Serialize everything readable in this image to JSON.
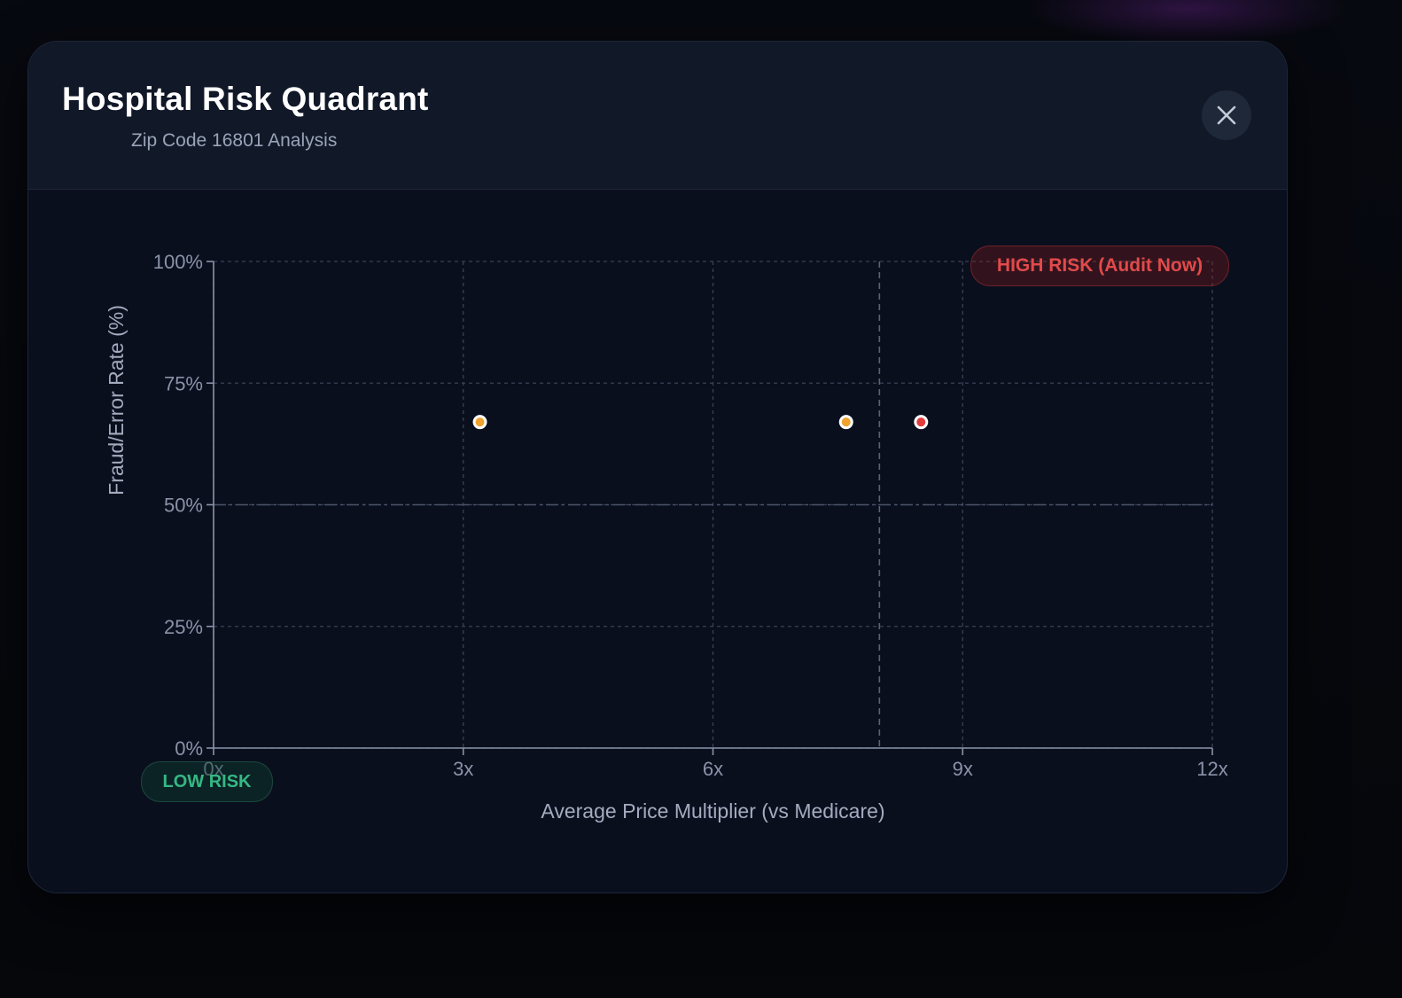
{
  "modal": {
    "title": "Hospital Risk Quadrant",
    "subtitle": "Zip Code 16801 Analysis",
    "close_icon": "close-icon"
  },
  "badges": {
    "high_risk": "HIGH RISK (Audit Now)",
    "low_risk": "LOW RISK"
  },
  "colors": {
    "background": "#0a0f1e",
    "grid": "#3a4254",
    "axis": "#8a93a8",
    "high_risk": "#e24a4a",
    "low_risk": "#35b884",
    "point_orange": "#f0a22e",
    "point_red": "#e23b3b"
  },
  "chart_data": {
    "type": "scatter",
    "title": "",
    "xlabel": "Average Price Multiplier (vs Medicare)",
    "ylabel": "Fraud/Error Rate (%)",
    "xlim": [
      0,
      12
    ],
    "ylim": [
      0,
      100
    ],
    "x_ticks": [
      0,
      3,
      6,
      9,
      12
    ],
    "x_tick_labels": [
      "0x",
      "3x",
      "6x",
      "9x",
      "12x"
    ],
    "y_ticks": [
      0,
      25,
      50,
      75,
      100
    ],
    "y_tick_labels": [
      "0%",
      "25%",
      "50%",
      "75%",
      "100%"
    ],
    "grid": true,
    "reference_lines": [
      {
        "axis": "y",
        "value": 50
      },
      {
        "axis": "x",
        "value": 8
      }
    ],
    "points": [
      {
        "x": 3.2,
        "y": 67,
        "color": "#f0a22e"
      },
      {
        "x": 7.6,
        "y": 67,
        "color": "#f0a22e"
      },
      {
        "x": 8.5,
        "y": 67,
        "color": "#e23b3b"
      }
    ]
  }
}
